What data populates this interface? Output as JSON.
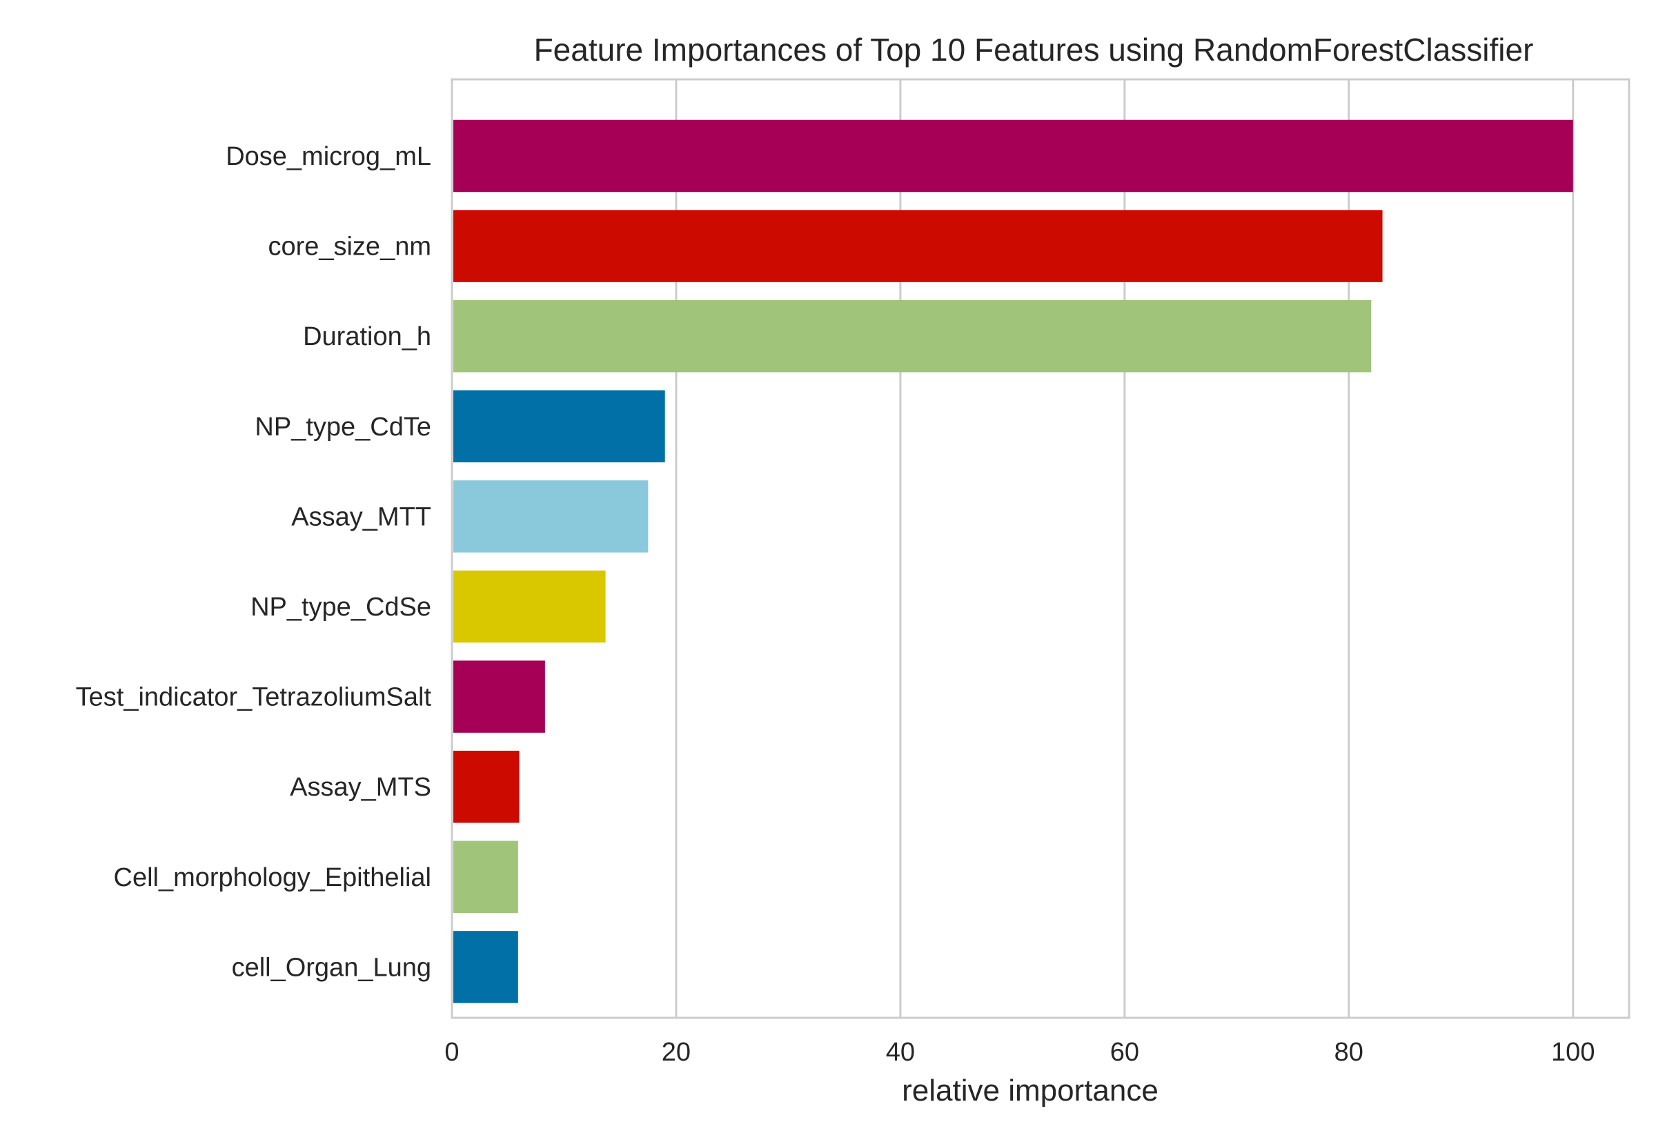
{
  "chart_data": {
    "type": "bar",
    "orientation": "horizontal",
    "title": "Feature Importances of Top 10 Features using RandomForestClassifier",
    "xlabel": "relative importance",
    "ylabel": "",
    "xlim": [
      0,
      105
    ],
    "xticks": [
      0,
      20,
      40,
      60,
      80,
      100
    ],
    "grid": true,
    "categories": [
      "Dose_microg_mL",
      "core_size_nm",
      "Duration_h",
      "NP_type_CdTe",
      "Assay_MTT",
      "NP_type_CdSe",
      "Test_indicator_TetrazoliumSalt",
      "Assay_MTS",
      "Cell_morphology_Epithelial",
      "cell_Organ_Lung"
    ],
    "values": [
      100,
      83.0,
      82.0,
      19.0,
      17.5,
      13.7,
      8.3,
      6.0,
      5.9,
      5.9
    ],
    "colors": [
      "#a50055",
      "#cc0a00",
      "#9fc47a",
      "#0070a6",
      "#8ac9db",
      "#d9c800",
      "#a50055",
      "#cc0a00",
      "#9fc47a",
      "#0070a6"
    ]
  }
}
